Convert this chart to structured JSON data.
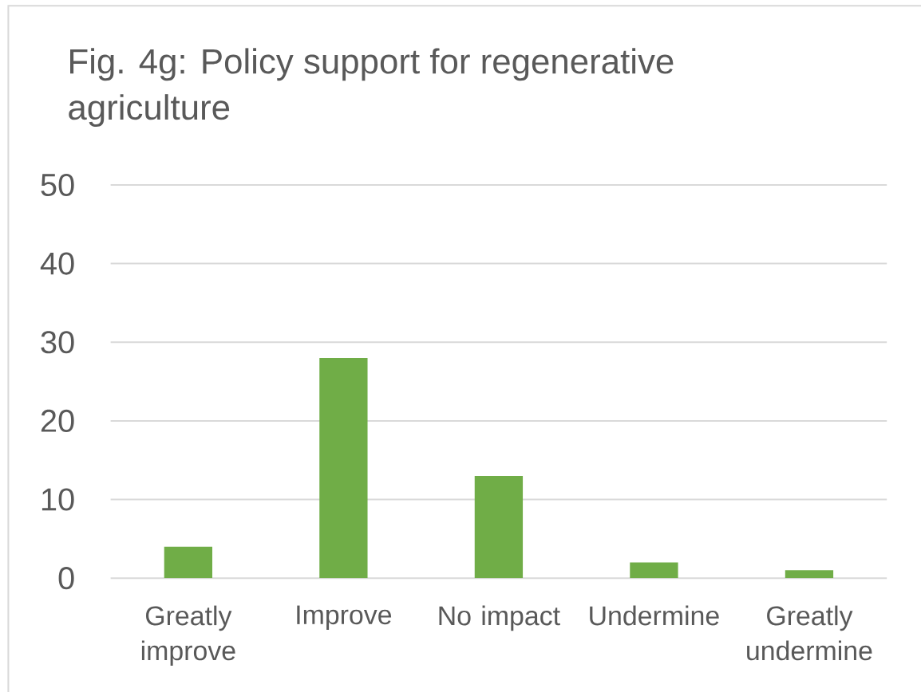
{
  "chart_data": {
    "type": "bar",
    "title": "Fig. 4g: Policy support for regenerative agriculture",
    "categories": [
      "Greatly improve",
      "Improve",
      "No impact",
      "Undermine",
      "Greatly undermine"
    ],
    "values": [
      4,
      28,
      13,
      2,
      1
    ],
    "color": "#70ad47",
    "ylim": [
      0,
      50
    ],
    "yticks": [
      0,
      10,
      20,
      30,
      40,
      50
    ],
    "grid": "y"
  }
}
